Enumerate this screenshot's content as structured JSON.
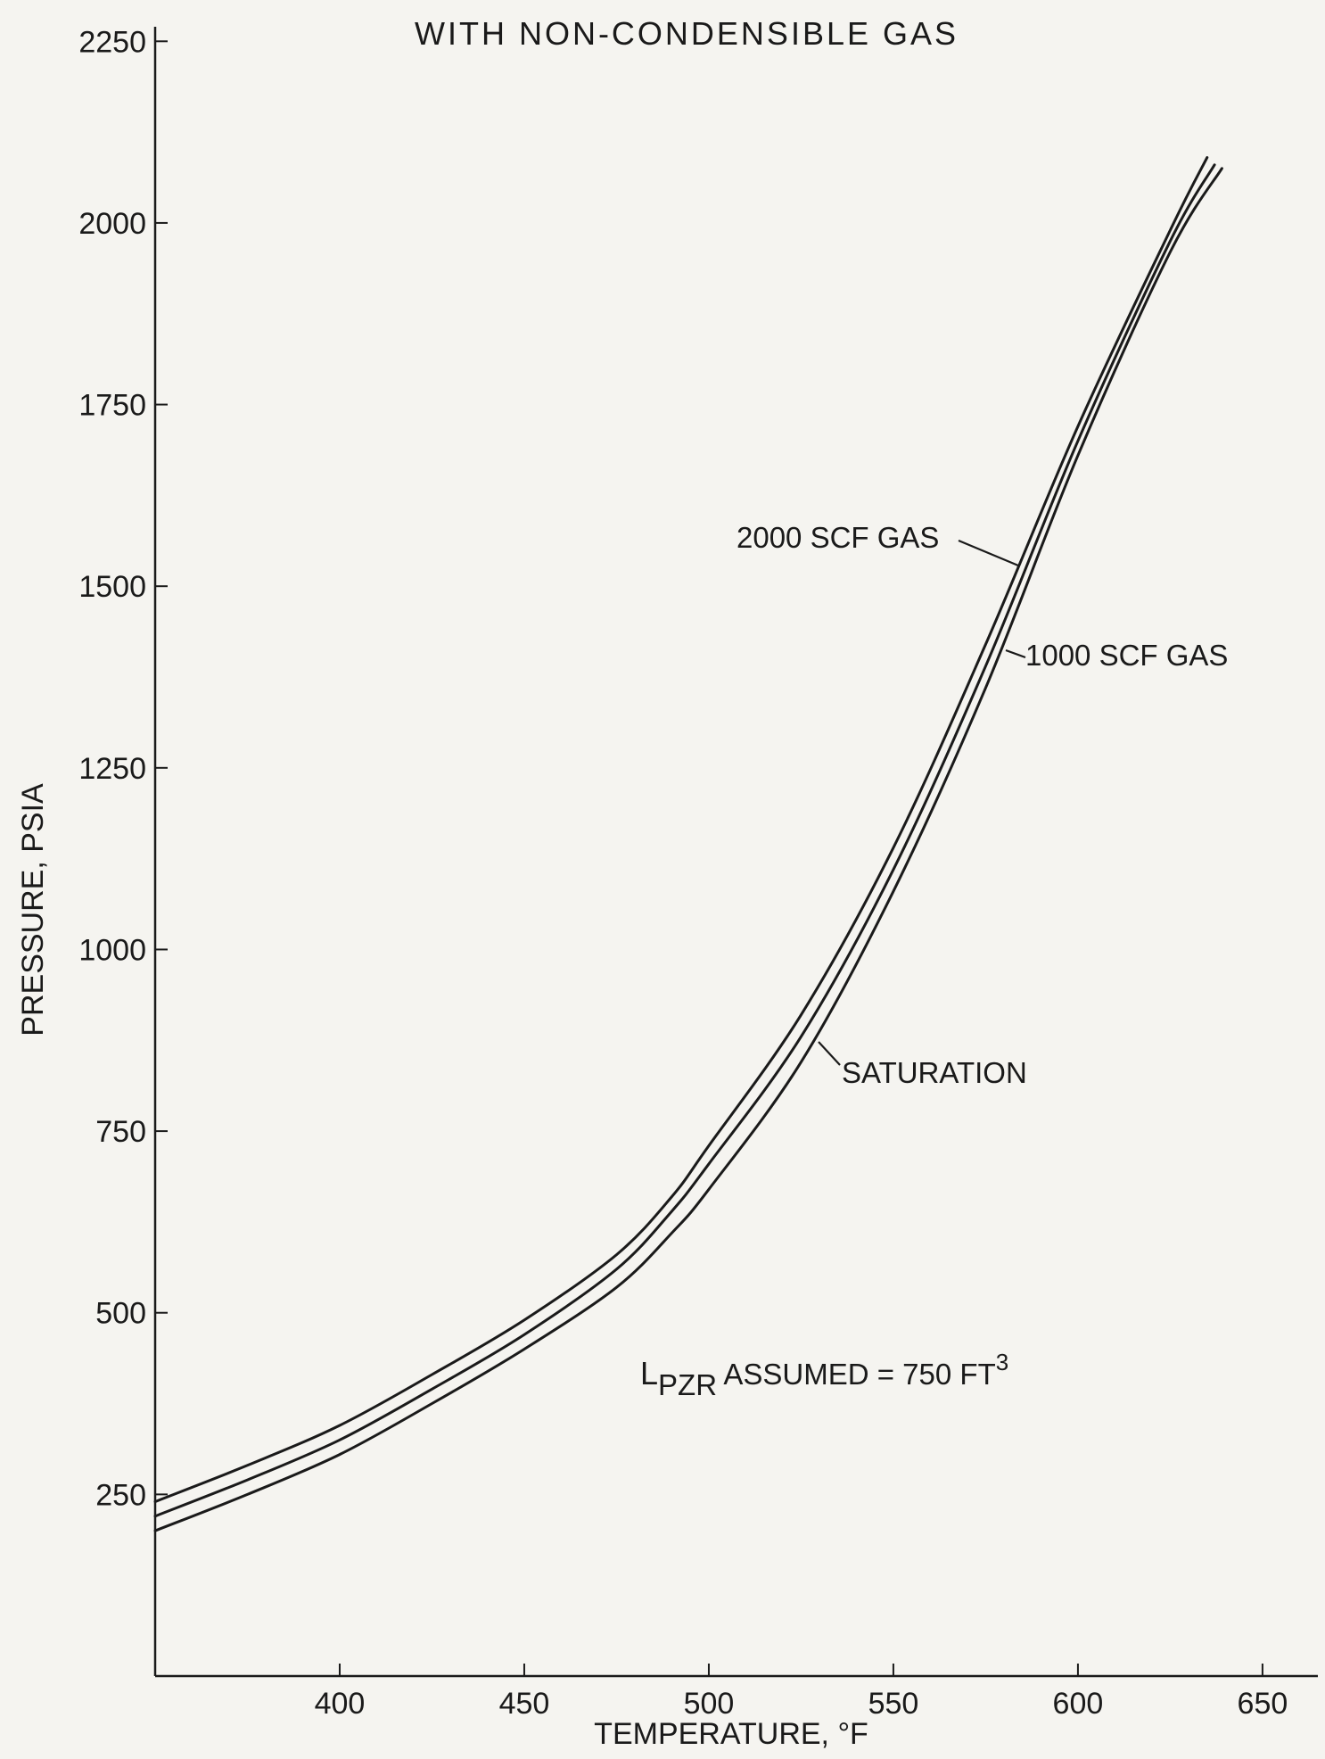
{
  "chart_data": {
    "type": "line",
    "title": "WITH NON-CONDENSIBLE GAS",
    "xlabel": "TEMPERATURE, °F",
    "ylabel": "PRESSURE, PSIA",
    "xlim": [
      350,
      665
    ],
    "ylim": [
      0,
      2270
    ],
    "xticks": [
      400,
      450,
      500,
      550,
      600,
      650
    ],
    "yticks": [
      250,
      500,
      750,
      1000,
      1250,
      1500,
      1750,
      2000,
      2250
    ],
    "grid": false,
    "legend": "none",
    "series": [
      {
        "name": "2000 SCF GAS",
        "x": [
          350,
          375,
          400,
          425,
          450,
          475,
          490,
          500,
          525,
          550,
          575,
          600,
          625,
          635
        ],
        "y": [
          240,
          290,
          345,
          415,
          490,
          580,
          660,
          730,
          910,
          1140,
          1420,
          1720,
          1990,
          2090
        ]
      },
      {
        "name": "1000 SCF GAS",
        "x": [
          350,
          375,
          400,
          425,
          450,
          475,
          490,
          500,
          525,
          550,
          575,
          600,
          625,
          637
        ],
        "y": [
          220,
          270,
          325,
          395,
          470,
          560,
          640,
          705,
          880,
          1110,
          1390,
          1700,
          1975,
          2080
        ]
      },
      {
        "name": "SATURATION",
        "x": [
          350,
          375,
          400,
          425,
          450,
          475,
          490,
          500,
          525,
          550,
          575,
          600,
          625,
          639
        ],
        "y": [
          200,
          250,
          305,
          375,
          450,
          535,
          610,
          670,
          845,
          1080,
          1360,
          1680,
          1960,
          2075
        ]
      }
    ],
    "annotations": {
      "gas2000": "2000 SCF GAS",
      "gas1000": "1000 SCF GAS",
      "saturation": "SATURATION",
      "assumption_prefix": "L",
      "assumption_sub": "PZR",
      "assumption_text": " ASSUMED = 750 FT",
      "assumption_sup": "3"
    }
  }
}
